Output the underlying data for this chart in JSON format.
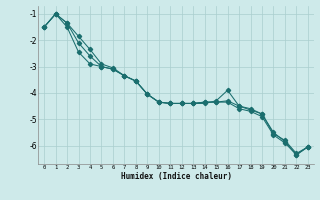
{
  "xlabel": "Humidex (Indice chaleur)",
  "bg_color": "#ceeaea",
  "grid_color": "#aacece",
  "line_color": "#1a6e6e",
  "xlim": [
    -0.5,
    23.5
  ],
  "ylim": [
    -6.7,
    -0.7
  ],
  "xticks": [
    0,
    1,
    2,
    3,
    4,
    5,
    6,
    7,
    8,
    9,
    10,
    11,
    12,
    13,
    14,
    15,
    16,
    17,
    18,
    19,
    20,
    21,
    22,
    23
  ],
  "yticks": [
    -1,
    -2,
    -3,
    -4,
    -5,
    -6
  ],
  "line1_x": [
    0,
    1,
    2,
    3,
    4,
    5,
    6,
    7,
    8,
    9,
    10,
    11,
    12,
    13,
    14,
    15,
    16,
    17,
    18,
    19,
    20,
    21,
    22,
    23
  ],
  "line1_y": [
    -1.5,
    -1.0,
    -1.35,
    -1.85,
    -2.35,
    -2.9,
    -3.05,
    -3.35,
    -3.55,
    -4.05,
    -4.35,
    -4.4,
    -4.4,
    -4.4,
    -4.35,
    -4.35,
    -4.3,
    -4.5,
    -4.65,
    -4.8,
    -5.55,
    -5.8,
    -6.3,
    -6.05
  ],
  "line2_x": [
    0,
    1,
    2,
    3,
    4,
    5,
    6,
    7,
    8,
    9,
    10,
    11,
    12,
    13,
    14,
    15,
    16,
    17,
    18,
    19,
    20,
    21,
    22,
    23
  ],
  "line2_y": [
    -1.5,
    -1.0,
    -1.35,
    -2.1,
    -2.6,
    -3.0,
    -3.1,
    -3.35,
    -3.55,
    -4.05,
    -4.35,
    -4.4,
    -4.4,
    -4.4,
    -4.35,
    -4.35,
    -4.35,
    -4.6,
    -4.7,
    -4.9,
    -5.6,
    -5.9,
    -6.35,
    -6.05
  ],
  "line3_x": [
    0,
    1,
    2,
    3,
    4,
    5,
    6,
    7,
    8,
    9,
    10,
    11,
    12,
    13,
    14,
    15,
    16,
    17,
    18,
    19,
    20,
    21,
    22,
    23
  ],
  "line3_y": [
    -1.5,
    -1.0,
    -1.5,
    -2.45,
    -2.9,
    -3.0,
    -3.1,
    -3.35,
    -3.55,
    -4.05,
    -4.35,
    -4.4,
    -4.4,
    -4.4,
    -4.4,
    -4.3,
    -3.9,
    -4.5,
    -4.6,
    -4.8,
    -5.5,
    -5.85,
    -6.35,
    -6.05
  ]
}
